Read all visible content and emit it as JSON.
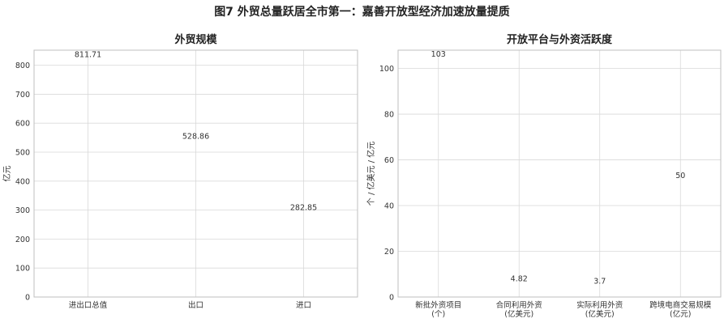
{
  "figure_title": "图7 外贸总量跃居全市第一：嘉善开放型经济加速放量提质",
  "chart_data": [
    {
      "type": "bar",
      "title": "外贸规模",
      "xlabel": "",
      "ylabel": "亿元",
      "categories": [
        "进出口总值",
        "出口",
        "进口"
      ],
      "values": [
        811.71,
        528.86,
        282.85
      ],
      "value_labels": [
        "811.71",
        "528.86",
        "282.85"
      ],
      "colors": [
        "#0b4f8c",
        "#1f77b4",
        "#ff7f0e"
      ],
      "ylim": [
        0,
        852
      ],
      "yticks": [
        0,
        100,
        200,
        300,
        400,
        500,
        600,
        700,
        800
      ],
      "grid": true
    },
    {
      "type": "bar",
      "title": "开放平台与外资活跃度",
      "xlabel": "",
      "ylabel": "个 / 亿美元 / 亿元",
      "categories": [
        "新批外资项目\n(个)",
        "合同利用外资\n(亿美元)",
        "实际利用外资\n(亿美元)",
        "跨境电商交易规模\n(亿元)"
      ],
      "values": [
        103,
        4.82,
        3.7,
        50
      ],
      "value_labels": [
        "103",
        "4.82",
        "3.7",
        "50"
      ],
      "colors": [
        "#1b9e77",
        "#c49a00",
        "#d62728",
        "#9467bd"
      ],
      "ylim": [
        0,
        108
      ],
      "yticks": [
        0,
        20,
        40,
        60,
        80,
        100
      ],
      "grid": true
    }
  ]
}
